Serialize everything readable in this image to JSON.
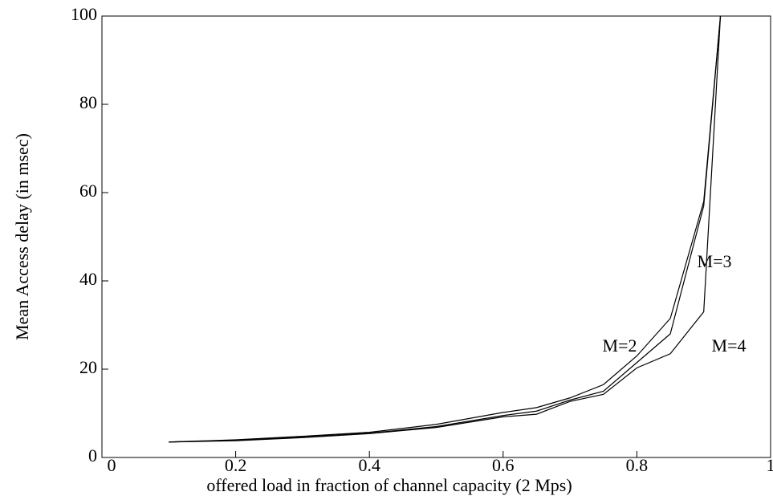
{
  "chart_data": {
    "type": "line",
    "xlabel": "offered load in fraction of channel capacity (2 Mps)",
    "ylabel": "Mean Access delay (in msec)",
    "x": [
      0.1,
      0.2,
      0.3,
      0.4,
      0.5,
      0.6,
      0.65,
      0.7,
      0.75,
      0.8,
      0.85,
      0.9,
      0.925
    ],
    "series": [
      {
        "name": "M=2",
        "color": "#000000",
        "values": [
          3.5,
          4,
          4.8,
          5.7,
          7.5,
          10.2,
          11.3,
          13.5,
          16.5,
          23,
          31.5,
          58,
          100
        ]
      },
      {
        "name": "M=3",
        "color": "#000000",
        "values": [
          3.5,
          3.9,
          4.6,
          5.5,
          7,
          9.5,
          10.5,
          13,
          15,
          21.5,
          28,
          57,
          100
        ]
      },
      {
        "name": "M=4",
        "color": "#000000",
        "values": [
          3.5,
          3.8,
          4.5,
          5.4,
          6.8,
          9.2,
          9.8,
          12.7,
          14.3,
          20.3,
          23.5,
          33,
          100
        ]
      }
    ],
    "xlim": [
      0,
      1
    ],
    "ylim": [
      0,
      100
    ],
    "xticks": [
      0,
      0.2,
      0.4,
      0.6,
      0.8,
      1
    ],
    "yticks": [
      0,
      20,
      40,
      60,
      80,
      100
    ],
    "grid": false
  }
}
